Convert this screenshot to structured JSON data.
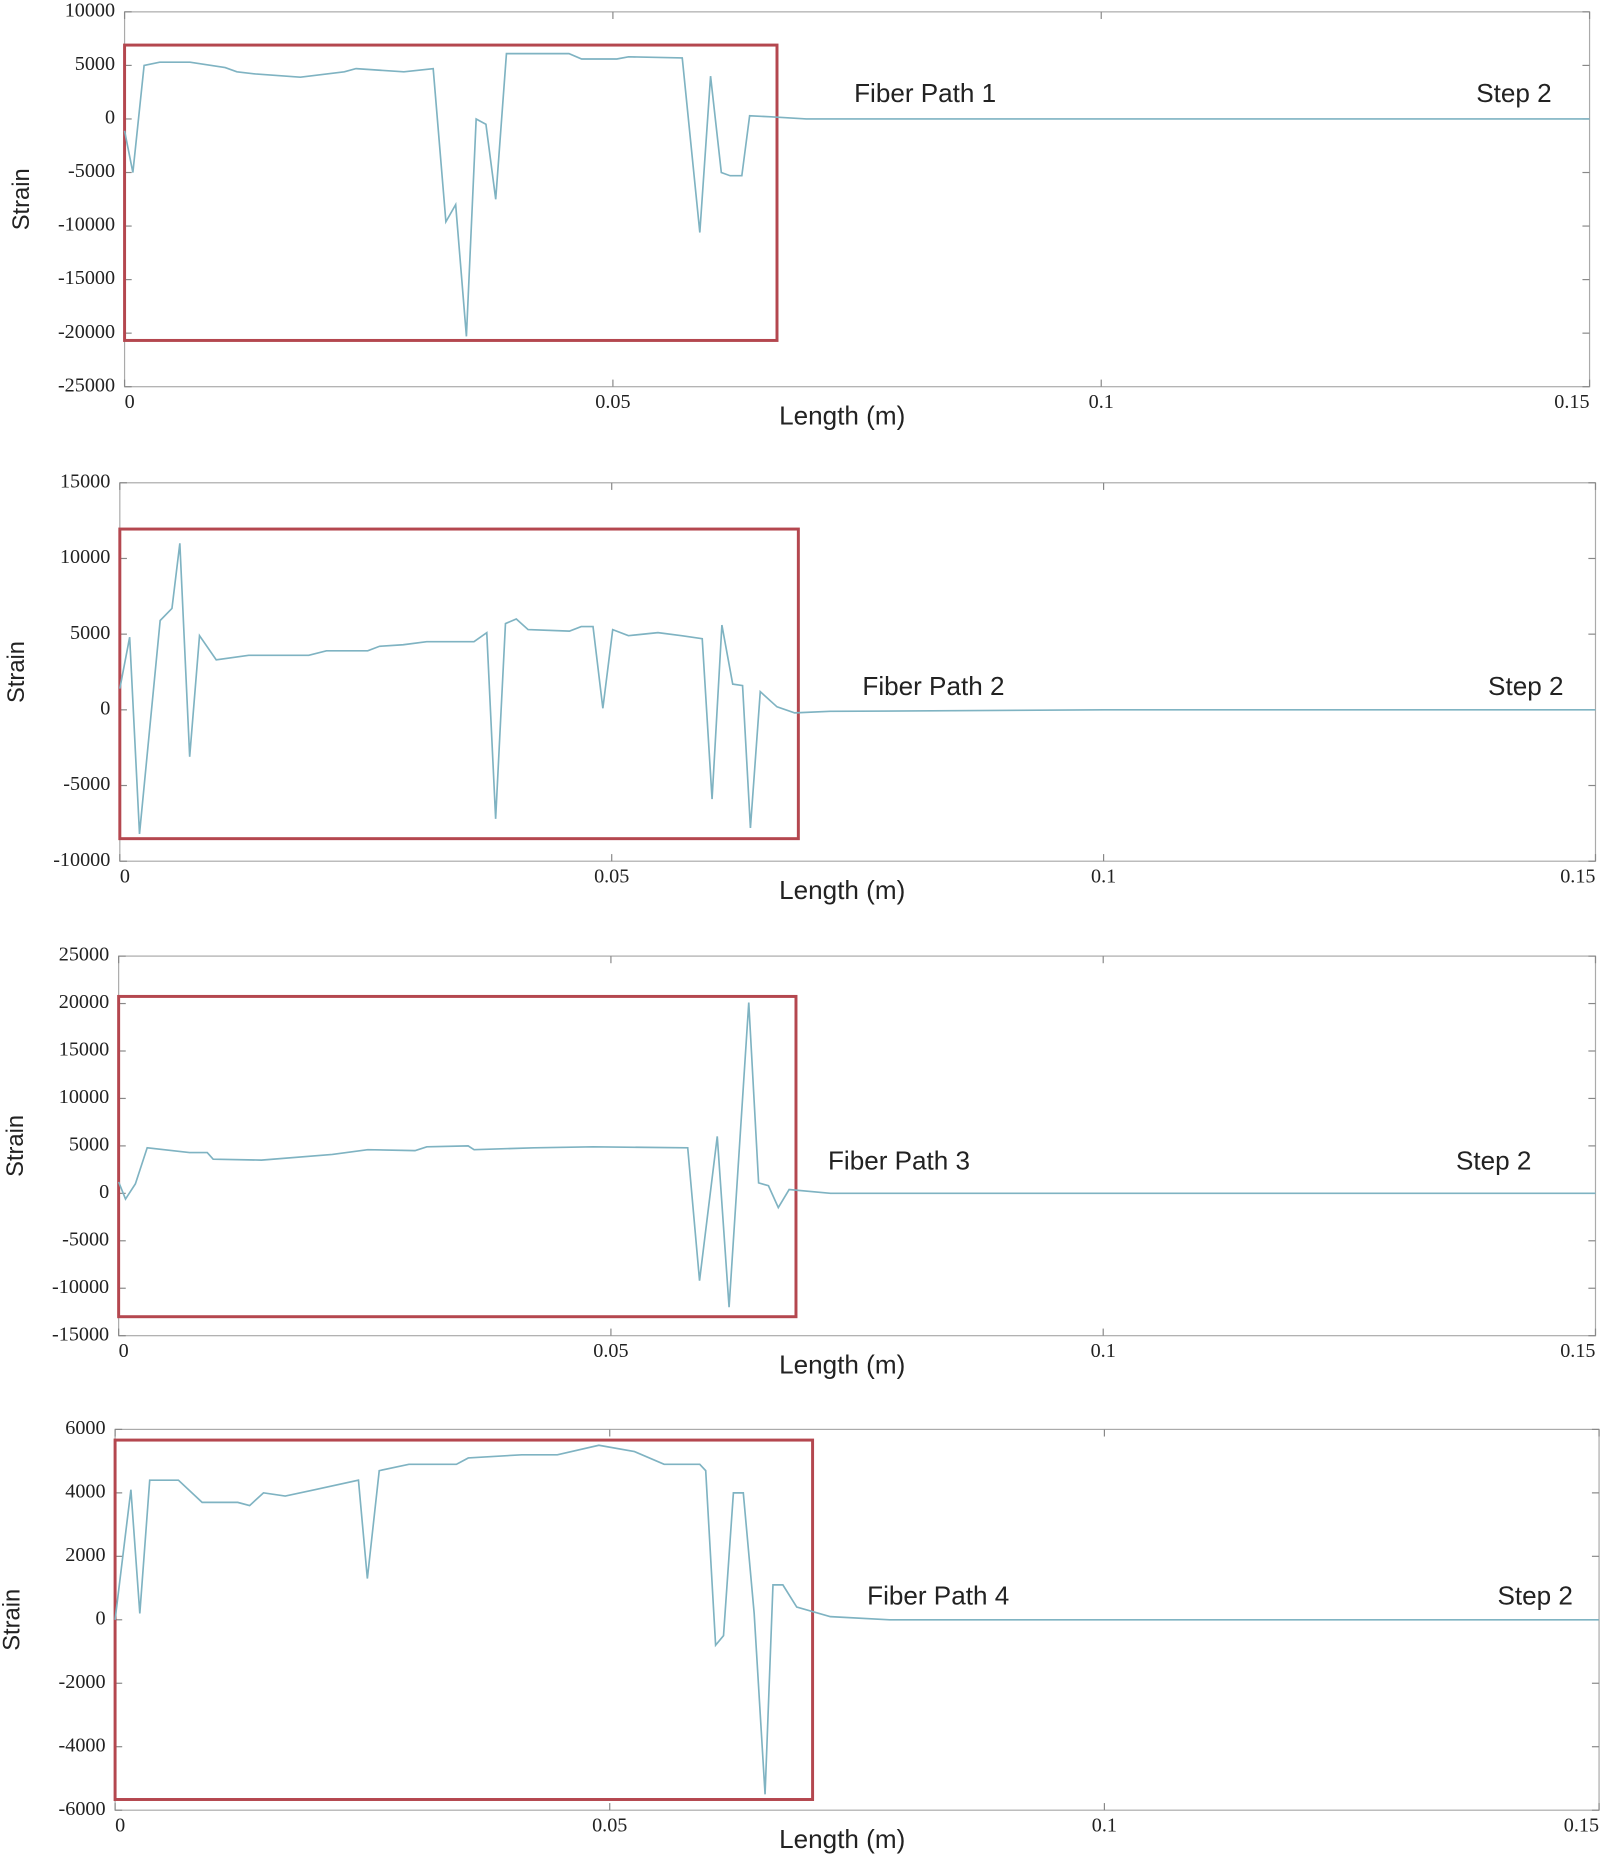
{
  "chart_data": [
    {
      "type": "line",
      "x_label": "Length (m)",
      "y_label": "Strain",
      "annotations": [
        "Fiber Path 1",
        "Step 2"
      ],
      "xlim": [
        0,
        0.15
      ],
      "xticks": [
        0,
        0.05,
        0.1,
        0.15
      ],
      "ylim": [
        -25000,
        10000
      ],
      "yticks": [
        -25000,
        -20000,
        -15000,
        -10000,
        -5000,
        0,
        5000,
        10000
      ],
      "color": "#7fb3c2",
      "x": [
        0,
        0.00085,
        0.002,
        0.0036,
        0.0067,
        0.0103,
        0.0115,
        0.0134,
        0.018,
        0.0225,
        0.0237,
        0.0286,
        0.0316,
        0.0329,
        0.0339,
        0.035,
        0.036,
        0.037,
        0.038,
        0.0391,
        0.0455,
        0.0468,
        0.0504,
        0.0516,
        0.0571,
        0.0589,
        0.06,
        0.0611,
        0.062,
        0.0632,
        0.064,
        0.0662,
        0.0698,
        0.1,
        0.12,
        0.15
      ],
      "values": [
        -1100,
        -5000,
        5000,
        5300,
        5300,
        4800,
        4400,
        4200,
        3900,
        4400,
        4700,
        4400,
        4700,
        -9600,
        -8000,
        -20300,
        0,
        -500,
        -7500,
        6100,
        6100,
        5600,
        5600,
        5800,
        5700,
        -10600,
        4000,
        -5000,
        -5300,
        -5300,
        300,
        200,
        0,
        0,
        0,
        0
      ]
    },
    {
      "type": "line",
      "x_label": "Length (m)",
      "y_label": "Strain",
      "annotations": [
        "Fiber Path 2",
        "Step 2"
      ],
      "xlim": [
        0,
        0.15
      ],
      "xticks": [
        0,
        0.05,
        0.1,
        0.15
      ],
      "ylim": [
        -10000,
        15000
      ],
      "yticks": [
        -10000,
        -5000,
        0,
        5000,
        10000,
        15000
      ],
      "color": "#7fb3c2",
      "x": [
        0,
        0.001,
        0.002,
        0.0041,
        0.0053,
        0.0061,
        0.0071,
        0.0081,
        0.0098,
        0.0131,
        0.0192,
        0.021,
        0.0252,
        0.0264,
        0.0288,
        0.0312,
        0.036,
        0.0373,
        0.0382,
        0.0392,
        0.0403,
        0.0415,
        0.0457,
        0.0469,
        0.0481,
        0.0491,
        0.0501,
        0.0517,
        0.0547,
        0.0571,
        0.0592,
        0.0602,
        0.0612,
        0.0623,
        0.0633,
        0.0641,
        0.0651,
        0.0668,
        0.0686,
        0.0722,
        0.1,
        0.15
      ],
      "values": [
        1400,
        4800,
        -8200,
        5900,
        6700,
        11000,
        -3100,
        4900,
        3300,
        3600,
        3600,
        3900,
        3900,
        4200,
        4300,
        4500,
        4500,
        5100,
        -7200,
        5700,
        6000,
        5300,
        5200,
        5500,
        5500,
        100,
        5300,
        4900,
        5100,
        4900,
        4700,
        -5900,
        5600,
        1700,
        1600,
        -7800,
        1200,
        200,
        -200,
        -100,
        0,
        0
      ]
    },
    {
      "type": "line",
      "x_label": "Length (m)",
      "y_label": "Strain",
      "annotations": [
        "Fiber Path 3",
        "Step 2"
      ],
      "xlim": [
        0,
        0.15
      ],
      "xticks": [
        0,
        0.05,
        0.1,
        0.15
      ],
      "ylim": [
        -15000,
        25000
      ],
      "yticks": [
        -15000,
        -10000,
        -5000,
        0,
        5000,
        10000,
        15000,
        20000,
        25000
      ],
      "color": "#7fb3c2",
      "x": [
        0,
        0.0007,
        0.0017,
        0.0029,
        0.0072,
        0.009,
        0.0096,
        0.0145,
        0.0217,
        0.0253,
        0.0301,
        0.0313,
        0.0355,
        0.0361,
        0.0422,
        0.0482,
        0.0578,
        0.059,
        0.0608,
        0.062,
        0.064,
        0.065,
        0.066,
        0.067,
        0.0681,
        0.0723,
        0.1,
        0.15
      ],
      "values": [
        1200,
        -600,
        1000,
        4800,
        4300,
        4300,
        3600,
        3500,
        4100,
        4600,
        4500,
        4900,
        5000,
        4600,
        4800,
        4900,
        4800,
        -9200,
        6000,
        -12000,
        20100,
        1100,
        800,
        -1500,
        400,
        0,
        0,
        0
      ]
    },
    {
      "type": "line",
      "x_label": "Length (m)",
      "y_label": "Strain",
      "annotations": [
        "Fiber Path 4",
        "Step 2"
      ],
      "xlim": [
        0,
        0.15
      ],
      "xticks": [
        0,
        0.05,
        0.1,
        0.15
      ],
      "ylim": [
        -6000,
        6000
      ],
      "yticks": [
        -6000,
        -4000,
        -2000,
        0,
        2000,
        4000,
        6000
      ],
      "color": "#7fb3c2",
      "x": [
        0,
        0.0016,
        0.0025,
        0.0035,
        0.0064,
        0.0088,
        0.0124,
        0.0136,
        0.015,
        0.0172,
        0.0202,
        0.0246,
        0.0255,
        0.0267,
        0.0297,
        0.0345,
        0.0357,
        0.0411,
        0.0447,
        0.0489,
        0.0525,
        0.0555,
        0.0591,
        0.0597,
        0.0607,
        0.0615,
        0.0625,
        0.0635,
        0.0646,
        0.0657,
        0.0665,
        0.0675,
        0.0689,
        0.0723,
        0.0783,
        0.1,
        0.15
      ],
      "values": [
        0,
        4100,
        200,
        4400,
        4400,
        3700,
        3700,
        3600,
        4000,
        3900,
        4100,
        4400,
        1300,
        4700,
        4900,
        4900,
        5100,
        5200,
        5200,
        5500,
        5300,
        4900,
        4900,
        4700,
        -800,
        -500,
        4000,
        4000,
        200,
        -5500,
        1100,
        1100,
        400,
        100,
        0,
        0,
        0
      ]
    }
  ]
}
